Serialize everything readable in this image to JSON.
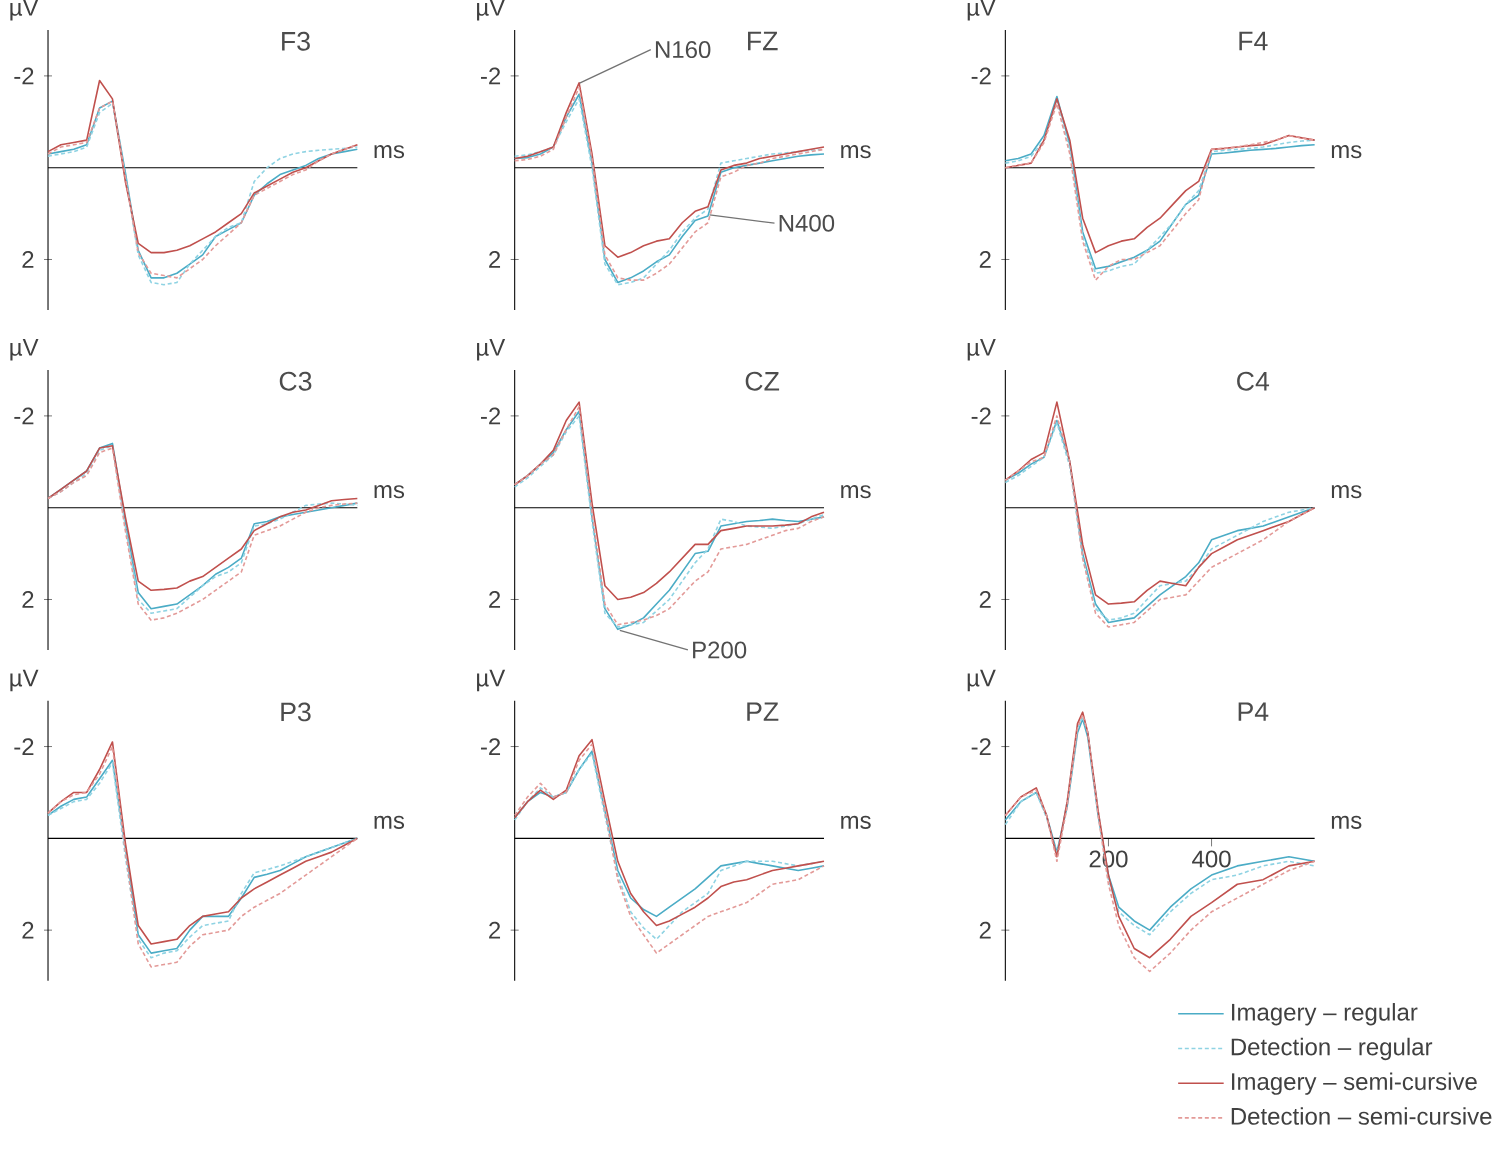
{
  "chart_data": [
    {
      "type": "line",
      "title": "F3",
      "xlabel": "ms",
      "ylabel": "µV",
      "ylim": [
        3.1,
        -3.0
      ],
      "yticks": [
        -2,
        2
      ],
      "tick_labels": "y",
      "categories": [
        null,
        null,
        null,
        null,
        null,
        null,
        null,
        null,
        null,
        null,
        null,
        null,
        null,
        null,
        null,
        null,
        null,
        null,
        null,
        null,
        null,
        null,
        null,
        null,
        null
      ],
      "series": [
        {
          "color": "#4bacc6",
          "line_style": "solid",
          "values": [
            -0.3,
            -0.35,
            -0.4,
            -0.5,
            -1.3,
            -1.45,
            0.1,
            1.8,
            2.4,
            2.4,
            2.3,
            2.1,
            1.9,
            1.5,
            1.35,
            1.2,
            0.6,
            0.35,
            0.15,
            0.05,
            -0.05,
            -0.2,
            -0.3,
            -0.35,
            -0.4
          ]
        },
        {
          "color": "#8fd3e3",
          "line_style": "dashed",
          "values": [
            -0.25,
            -0.3,
            -0.35,
            -0.45,
            -1.2,
            -1.4,
            0.2,
            1.9,
            2.5,
            2.55,
            2.5,
            2.1,
            1.8,
            1.5,
            1.3,
            1.2,
            0.3,
            0,
            -0.2,
            -0.3,
            -0.35,
            -0.38,
            -0.4,
            -0.42,
            -0.45
          ]
        },
        {
          "color": "#c0504d",
          "line_style": "solid",
          "values": [
            -0.35,
            -0.5,
            -0.55,
            -0.6,
            -1.9,
            -1.5,
            0.3,
            1.65,
            1.85,
            1.85,
            1.8,
            1.7,
            1.55,
            1.4,
            1.2,
            1.0,
            0.55,
            0.4,
            0.25,
            0.1,
            0,
            -0.15,
            -0.3,
            -0.4,
            -0.5
          ]
        },
        {
          "color": "#e39a98",
          "line_style": "dashed",
          "values": [
            -0.3,
            -0.45,
            -0.5,
            -0.55,
            -1.3,
            -1.45,
            0.2,
            1.85,
            2.3,
            2.35,
            2.4,
            2.2,
            2.0,
            1.7,
            1.45,
            1.2,
            0.6,
            0.45,
            0.3,
            0.15,
            0.05,
            -0.15,
            -0.3,
            -0.4,
            -0.5
          ]
        }
      ]
    },
    {
      "type": "line",
      "title": "FZ",
      "xlabel": "ms",
      "ylabel": "µV",
      "ylim": [
        3.1,
        -3.0
      ],
      "yticks": [
        -2,
        2
      ],
      "tick_labels": "y",
      "categories": [
        null,
        null,
        null,
        null,
        null,
        null,
        null,
        null,
        null,
        null,
        null,
        null,
        null,
        null,
        null,
        null,
        null,
        null,
        null,
        null,
        null,
        null,
        null,
        null,
        null
      ],
      "annotations": [
        "N160",
        "N400"
      ],
      "series": [
        {
          "color": "#4bacc6",
          "line_style": "solid",
          "values": [
            -0.2,
            -0.22,
            -0.3,
            -0.45,
            -1.1,
            -1.6,
            -0.1,
            2.0,
            2.5,
            2.4,
            2.25,
            2.05,
            1.9,
            1.5,
            1.15,
            1.05,
            0.1,
            0,
            -0.05,
            -0.1,
            -0.15,
            -0.2,
            -0.25,
            -0.28,
            -0.3
          ]
        },
        {
          "color": "#8fd3e3",
          "line_style": "dashed",
          "values": [
            -0.25,
            -0.28,
            -0.35,
            -0.45,
            -1.0,
            -1.5,
            0,
            2.1,
            2.55,
            2.5,
            2.4,
            2.1,
            1.8,
            1.4,
            1.1,
            0.9,
            -0.1,
            -0.15,
            -0.2,
            -0.25,
            -0.3,
            -0.32,
            -0.35,
            -0.38,
            -0.4
          ]
        },
        {
          "color": "#c0504d",
          "line_style": "solid",
          "values": [
            -0.2,
            -0.25,
            -0.35,
            -0.45,
            -1.2,
            -1.85,
            -0.3,
            1.7,
            1.95,
            1.85,
            1.7,
            1.6,
            1.55,
            1.2,
            0.95,
            0.85,
            0.05,
            -0.05,
            -0.1,
            -0.2,
            -0.25,
            -0.3,
            -0.35,
            -0.4,
            -0.45
          ]
        },
        {
          "color": "#e39a98",
          "line_style": "dashed",
          "values": [
            -0.15,
            -0.18,
            -0.25,
            -0.4,
            -1.1,
            -1.75,
            -0.2,
            1.9,
            2.4,
            2.45,
            2.45,
            2.3,
            2.1,
            1.75,
            1.4,
            1.2,
            0.2,
            0.1,
            -0.05,
            -0.1,
            -0.2,
            -0.25,
            -0.3,
            -0.35,
            -0.4
          ]
        }
      ]
    },
    {
      "type": "line",
      "title": "F4",
      "xlabel": "ms",
      "ylabel": "µV",
      "ylim": [
        3.1,
        -3.0
      ],
      "yticks": [
        -2,
        2
      ],
      "tick_labels": "y",
      "categories": [
        null,
        null,
        null,
        null,
        null,
        null,
        null,
        null,
        null,
        null,
        null,
        null,
        null,
        null,
        null,
        null,
        null,
        null,
        null,
        null,
        null,
        null,
        null,
        null,
        null
      ],
      "series": [
        {
          "color": "#4bacc6",
          "line_style": "solid",
          "values": [
            -0.15,
            -0.2,
            -0.3,
            -0.7,
            -1.55,
            -0.5,
            1.4,
            2.2,
            2.15,
            2.05,
            1.95,
            1.8,
            1.6,
            1.2,
            0.8,
            0.6,
            -0.3,
            -0.32,
            -0.35,
            -0.38,
            -0.4,
            -0.42,
            -0.45,
            -0.48,
            -0.5
          ]
        },
        {
          "color": "#8fd3e3",
          "line_style": "dashed",
          "values": [
            -0.1,
            -0.15,
            -0.25,
            -0.6,
            -1.45,
            -0.4,
            1.5,
            2.3,
            2.25,
            2.15,
            2.1,
            1.8,
            1.5,
            1.2,
            0.8,
            0.5,
            -0.35,
            -0.38,
            -0.4,
            -0.42,
            -0.45,
            -0.5,
            -0.55,
            -0.58,
            -0.6
          ]
        },
        {
          "color": "#c0504d",
          "line_style": "solid",
          "values": [
            0,
            -0.05,
            -0.1,
            -0.6,
            -1.5,
            -0.6,
            1.1,
            1.85,
            1.7,
            1.6,
            1.55,
            1.3,
            1.1,
            0.8,
            0.5,
            0.3,
            -0.4,
            -0.42,
            -0.45,
            -0.48,
            -0.5,
            -0.6,
            -0.7,
            -0.65,
            -0.6
          ]
        },
        {
          "color": "#e39a98",
          "line_style": "dashed",
          "values": [
            0,
            -0.05,
            -0.1,
            -0.55,
            -1.4,
            -0.3,
            1.6,
            2.45,
            2.15,
            2.0,
            2.0,
            1.85,
            1.7,
            1.35,
            1.0,
            0.7,
            -0.4,
            -0.42,
            -0.45,
            -0.5,
            -0.55,
            -0.6,
            -0.7,
            -0.65,
            -0.6
          ]
        }
      ]
    },
    {
      "type": "line",
      "title": "C3",
      "xlabel": "ms",
      "ylabel": "µV",
      "ylim": [
        3.1,
        -3.0
      ],
      "yticks": [
        -2,
        2
      ],
      "tick_labels": "y",
      "categories": [
        null,
        null,
        null,
        null,
        null,
        null,
        null,
        null,
        null,
        null,
        null,
        null,
        null,
        null,
        null,
        null,
        null,
        null,
        null,
        null,
        null,
        null,
        null,
        null,
        null
      ],
      "series": [
        {
          "color": "#4bacc6",
          "line_style": "solid",
          "values": [
            -0.2,
            -0.4,
            -0.6,
            -0.8,
            -1.3,
            -1.4,
            0.3,
            1.85,
            2.2,
            2.15,
            2.1,
            1.9,
            1.7,
            1.45,
            1.3,
            1.1,
            0.35,
            0.3,
            0.2,
            0.15,
            0.1,
            0.05,
            0,
            -0.05,
            -0.1
          ]
        },
        {
          "color": "#8fd3e3",
          "line_style": "dashed",
          "values": [
            -0.2,
            -0.35,
            -0.55,
            -0.75,
            -1.25,
            -1.35,
            0.4,
            2.0,
            2.3,
            2.25,
            2.2,
            1.95,
            1.7,
            1.5,
            1.4,
            1.2,
            0.4,
            0.35,
            0.25,
            0.1,
            -0.05,
            -0.08,
            -0.1,
            -0.08,
            -0.05
          ]
        },
        {
          "color": "#c0504d",
          "line_style": "solid",
          "values": [
            -0.2,
            -0.4,
            -0.6,
            -0.8,
            -1.3,
            -1.35,
            0.2,
            1.6,
            1.8,
            1.78,
            1.75,
            1.6,
            1.5,
            1.3,
            1.1,
            0.9,
            0.5,
            0.35,
            0.2,
            0.1,
            0.05,
            -0.05,
            -0.15,
            -0.18,
            -0.2
          ]
        },
        {
          "color": "#e39a98",
          "line_style": "dashed",
          "values": [
            -0.2,
            -0.35,
            -0.55,
            -0.7,
            -1.2,
            -1.3,
            0.5,
            2.1,
            2.45,
            2.4,
            2.3,
            2.15,
            2.0,
            1.8,
            1.6,
            1.4,
            0.6,
            0.5,
            0.4,
            0.25,
            0.1,
            0,
            -0.05,
            -0.08,
            -0.1
          ]
        }
      ]
    },
    {
      "type": "line",
      "title": "CZ",
      "xlabel": "ms",
      "ylabel": "µV",
      "ylim": [
        3.1,
        -3.0
      ],
      "yticks": [
        -2,
        2
      ],
      "tick_labels": "y",
      "categories": [
        null,
        null,
        null,
        null,
        null,
        null,
        null,
        null,
        null,
        null,
        null,
        null,
        null,
        null,
        null,
        null,
        null,
        null,
        null,
        null,
        null,
        null,
        null,
        null,
        null
      ],
      "annotations": [
        "P200"
      ],
      "series": [
        {
          "color": "#4bacc6",
          "line_style": "solid",
          "values": [
            -0.5,
            -0.7,
            -0.95,
            -1.2,
            -1.7,
            -2.1,
            0.2,
            2.2,
            2.65,
            2.55,
            2.4,
            2.1,
            1.8,
            1.4,
            1.0,
            0.95,
            0.4,
            0.35,
            0.3,
            0.28,
            0.25,
            0.28,
            0.3,
            0.25,
            0.2
          ]
        },
        {
          "color": "#8fd3e3",
          "line_style": "dashed",
          "values": [
            -0.45,
            -0.65,
            -0.9,
            -1.15,
            -1.65,
            -2.0,
            0.3,
            2.3,
            2.6,
            2.55,
            2.5,
            2.25,
            2.0,
            1.6,
            1.2,
            0.9,
            0.25,
            0.3,
            0.4,
            0.42,
            0.45,
            0.4,
            0.35,
            0.25,
            0.15
          ]
        },
        {
          "color": "#c0504d",
          "line_style": "solid",
          "values": [
            -0.5,
            -0.7,
            -0.95,
            -1.25,
            -1.9,
            -2.3,
            -0.1,
            1.7,
            2.0,
            1.95,
            1.85,
            1.65,
            1.4,
            1.1,
            0.8,
            0.8,
            0.5,
            0.45,
            0.4,
            0.4,
            0.4,
            0.38,
            0.35,
            0.2,
            0.1
          ]
        },
        {
          "color": "#e39a98",
          "line_style": "dashed",
          "values": [
            -0.5,
            -0.7,
            -0.95,
            -1.15,
            -1.7,
            -2.2,
            0.1,
            2.1,
            2.55,
            2.5,
            2.45,
            2.35,
            2.2,
            1.9,
            1.6,
            1.4,
            0.9,
            0.85,
            0.8,
            0.7,
            0.6,
            0.5,
            0.45,
            0.3,
            0.2
          ]
        }
      ]
    },
    {
      "type": "line",
      "title": "C4",
      "xlabel": "ms",
      "ylabel": "µV",
      "ylim": [
        3.1,
        -3.0
      ],
      "yticks": [
        -2,
        2
      ],
      "tick_labels": "y",
      "categories": [
        null,
        null,
        null,
        null,
        null,
        null,
        null,
        null,
        null,
        null,
        null,
        null,
        null,
        null,
        null,
        null,
        null,
        null,
        null,
        null,
        null,
        null,
        null,
        null,
        null
      ],
      "series": [
        {
          "color": "#4bacc6",
          "line_style": "solid",
          "values": [
            -0.6,
            -0.75,
            -0.95,
            -1.1,
            -1.9,
            -1.0,
            1.0,
            2.1,
            2.5,
            2.45,
            2.4,
            2.15,
            1.9,
            1.7,
            1.5,
            1.2,
            0.7,
            0.6,
            0.5,
            0.45,
            0.4,
            0.3,
            0.2,
            0.1,
            0
          ]
        },
        {
          "color": "#8fd3e3",
          "line_style": "dashed",
          "values": [
            -0.55,
            -0.7,
            -0.9,
            -1.1,
            -1.85,
            -0.9,
            1.1,
            2.2,
            2.45,
            2.4,
            2.3,
            2.0,
            1.7,
            1.65,
            1.6,
            1.3,
            0.9,
            0.75,
            0.6,
            0.45,
            0.3,
            0.2,
            0.1,
            0.05,
            0
          ]
        },
        {
          "color": "#c0504d",
          "line_style": "solid",
          "values": [
            -0.6,
            -0.8,
            -1.05,
            -1.2,
            -2.3,
            -1.0,
            0.8,
            1.9,
            2.1,
            2.08,
            2.05,
            1.8,
            1.6,
            1.65,
            1.7,
            1.3,
            1.0,
            0.85,
            0.7,
            0.6,
            0.5,
            0.4,
            0.3,
            0.15,
            0
          ]
        },
        {
          "color": "#e39a98",
          "line_style": "dashed",
          "values": [
            -0.6,
            -0.8,
            -1.0,
            -1.1,
            -2.0,
            -1.0,
            1.1,
            2.3,
            2.6,
            2.55,
            2.5,
            2.25,
            2.0,
            1.95,
            1.9,
            1.6,
            1.3,
            1.15,
            1.0,
            0.85,
            0.7,
            0.5,
            0.3,
            0.15,
            0
          ]
        }
      ]
    },
    {
      "type": "line",
      "title": "P3",
      "xlabel": "ms",
      "ylabel": "µV",
      "ylim": [
        3.1,
        -3.0
      ],
      "yticks": [
        -2,
        2
      ],
      "tick_labels": "y",
      "categories": [
        null,
        null,
        null,
        null,
        null,
        null,
        null,
        null,
        null,
        null,
        null,
        null,
        null,
        null,
        null,
        null,
        null,
        null,
        null,
        null,
        null,
        null,
        null,
        null,
        null
      ],
      "series": [
        {
          "color": "#4bacc6",
          "line_style": "solid",
          "values": [
            -0.5,
            -0.7,
            -0.85,
            -0.9,
            -1.3,
            -1.7,
            0.2,
            2.1,
            2.5,
            2.45,
            2.4,
            2.0,
            1.7,
            1.7,
            1.7,
            1.3,
            0.85,
            0.78,
            0.7,
            0.55,
            0.4,
            0.3,
            0.2,
            0.1,
            0
          ]
        },
        {
          "color": "#8fd3e3",
          "line_style": "dashed",
          "values": [
            -0.5,
            -0.65,
            -0.8,
            -0.85,
            -1.2,
            -1.65,
            0.4,
            2.2,
            2.6,
            2.5,
            2.45,
            2.15,
            1.9,
            1.85,
            1.8,
            1.2,
            0.75,
            0.68,
            0.6,
            0.5,
            0.4,
            0.3,
            0.2,
            0.1,
            0
          ]
        },
        {
          "color": "#c0504d",
          "line_style": "solid",
          "values": [
            -0.55,
            -0.8,
            -1.0,
            -1.0,
            -1.5,
            -2.1,
            0.1,
            1.9,
            2.3,
            2.25,
            2.2,
            1.9,
            1.7,
            1.65,
            1.6,
            1.3,
            1.1,
            0.95,
            0.8,
            0.65,
            0.5,
            0.4,
            0.3,
            0.15,
            0
          ]
        },
        {
          "color": "#e39a98",
          "line_style": "dashed",
          "values": [
            -0.55,
            -0.8,
            -0.95,
            -1.0,
            -1.4,
            -2.0,
            0.3,
            2.3,
            2.8,
            2.75,
            2.7,
            2.35,
            2.1,
            2.05,
            2.0,
            1.7,
            1.5,
            1.35,
            1.2,
            1.0,
            0.8,
            0.6,
            0.4,
            0.2,
            0
          ]
        }
      ]
    },
    {
      "type": "line",
      "title": "PZ",
      "xlabel": "ms",
      "ylabel": "µV",
      "ylim": [
        3.1,
        -3.0
      ],
      "yticks": [
        -2,
        2
      ],
      "tick_labels": "y",
      "categories": [
        null,
        null,
        null,
        null,
        null,
        null,
        null,
        null,
        null,
        null,
        null,
        null,
        null,
        null,
        null,
        null,
        null,
        null,
        null,
        null,
        null,
        null,
        null,
        null,
        null
      ],
      "series": [
        {
          "color": "#4bacc6",
          "line_style": "solid",
          "values": [
            -0.45,
            -0.8,
            -1.0,
            -0.9,
            -1.0,
            -1.5,
            -1.9,
            -0.6,
            0.7,
            1.3,
            1.55,
            1.7,
            1.5,
            1.3,
            1.1,
            0.85,
            0.6,
            0.55,
            0.5,
            0.55,
            0.6,
            0.65,
            0.7,
            0.65,
            0.6
          ]
        },
        {
          "color": "#8fd3e3",
          "line_style": "dashed",
          "values": [
            -0.4,
            -0.8,
            -1.1,
            -0.9,
            -1.0,
            -1.5,
            -1.85,
            -0.5,
            0.8,
            1.6,
            1.95,
            2.2,
            1.9,
            1.6,
            1.4,
            1.2,
            0.7,
            0.6,
            0.5,
            0.5,
            0.5,
            0.55,
            0.6,
            0.55,
            0.5
          ]
        },
        {
          "color": "#c0504d",
          "line_style": "solid",
          "values": [
            -0.45,
            -0.8,
            -1.05,
            -0.85,
            -1.05,
            -1.8,
            -2.15,
            -0.8,
            0.5,
            1.2,
            1.6,
            1.9,
            1.8,
            1.65,
            1.5,
            1.3,
            1.05,
            0.95,
            0.9,
            0.8,
            0.7,
            0.65,
            0.6,
            0.55,
            0.5
          ]
        },
        {
          "color": "#e39a98",
          "line_style": "dashed",
          "values": [
            -0.5,
            -0.9,
            -1.2,
            -0.9,
            -1.0,
            -1.7,
            -2.05,
            -0.6,
            0.9,
            1.7,
            2.1,
            2.5,
            2.3,
            2.1,
            1.9,
            1.7,
            1.6,
            1.5,
            1.4,
            1.2,
            1.0,
            0.95,
            0.9,
            0.75,
            0.6
          ]
        }
      ]
    },
    {
      "type": "line",
      "title": "P4",
      "xlabel": "ms",
      "ylabel": "µV",
      "xlim": [
        0,
        600
      ],
      "ylim": [
        3.1,
        -3.0
      ],
      "xticks": [
        200,
        400
      ],
      "yticks": [
        -2,
        2
      ],
      "legend": "bottom right",
      "x": [
        0,
        30,
        60,
        80,
        100,
        120,
        140,
        150,
        160,
        180,
        200,
        220,
        250,
        280,
        320,
        360,
        400,
        450,
        500,
        550,
        600
      ],
      "series": [
        {
          "name": "Imagery – regular",
          "color": "#4bacc6",
          "line_style": "solid",
          "values": [
            -0.4,
            -0.8,
            -1.0,
            -0.5,
            0.3,
            -0.7,
            -2.3,
            -2.6,
            -2.2,
            -0.5,
            0.8,
            1.5,
            1.8,
            2.0,
            1.5,
            1.1,
            0.8,
            0.6,
            0.5,
            0.4,
            0.5
          ]
        },
        {
          "name": "Detection – regular",
          "color": "#8fd3e3",
          "line_style": "dashed",
          "values": [
            -0.3,
            -0.8,
            -1.0,
            -0.45,
            0.35,
            -0.8,
            -2.4,
            -2.65,
            -2.3,
            -0.6,
            0.9,
            1.6,
            1.9,
            2.1,
            1.6,
            1.2,
            0.9,
            0.8,
            0.6,
            0.5,
            0.6
          ]
        },
        {
          "name": "Imagery – semi-cursive",
          "color": "#c0504d",
          "line_style": "solid",
          "values": [
            -0.5,
            -0.9,
            -1.1,
            -0.5,
            0.4,
            -0.8,
            -2.5,
            -2.75,
            -2.3,
            -0.6,
            0.8,
            1.7,
            2.4,
            2.6,
            2.2,
            1.7,
            1.4,
            1.0,
            0.9,
            0.6,
            0.5
          ]
        },
        {
          "name": "Detection – semi-cursive",
          "color": "#e39a98",
          "line_style": "dashed",
          "values": [
            -0.5,
            -0.9,
            -1.05,
            -0.5,
            0.5,
            -0.7,
            -2.4,
            -2.7,
            -2.3,
            -0.5,
            1.0,
            1.9,
            2.6,
            2.9,
            2.5,
            2.0,
            1.6,
            1.3,
            1.0,
            0.7,
            0.5
          ]
        }
      ]
    }
  ]
}
